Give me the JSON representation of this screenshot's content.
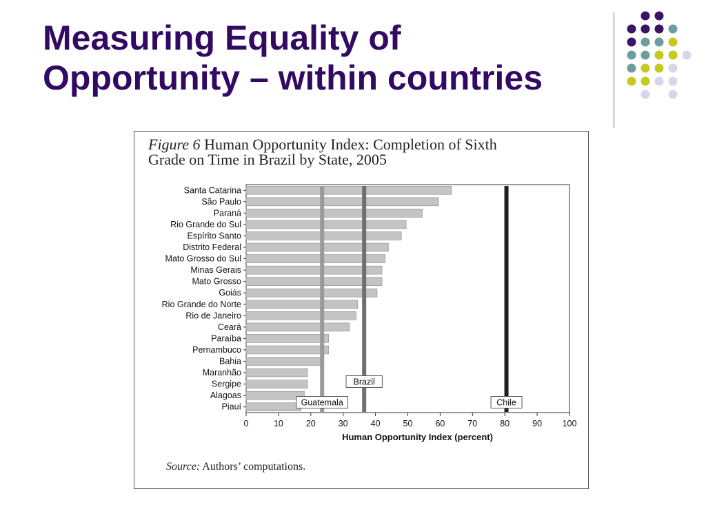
{
  "slide": {
    "title_line1": "Measuring Equality of",
    "title_line2": "Opportunity – within countries",
    "title_color": "#330a63"
  },
  "decoration": {
    "dot_colors": {
      "purple": "#3a1466",
      "teal": "#6f9c9c",
      "yellow": "#c8c81e",
      "lavender": "#d6d6ea"
    },
    "dot_rows": [
      [
        "",
        "purple",
        "purple",
        "",
        ""
      ],
      [
        "purple",
        "purple",
        "purple",
        "teal",
        ""
      ],
      [
        "purple",
        "teal",
        "teal",
        "yellow",
        ""
      ],
      [
        "teal",
        "teal",
        "yellow",
        "yellow",
        "lavender"
      ],
      [
        "teal",
        "yellow",
        "yellow",
        "lavender",
        ""
      ],
      [
        "yellow",
        "yellow",
        "lavender",
        "lavender",
        ""
      ],
      [
        "",
        "lavender",
        "",
        "lavender",
        ""
      ]
    ]
  },
  "figure": {
    "label": "Figure 6",
    "title_rest_line1": " Human Opportunity Index: Completion of Sixth",
    "title_line2": "Grade on Time in Brazil by State, 2005",
    "source_label": "Source:",
    "source_text": " Authors’ computations."
  },
  "chart_data": {
    "type": "bar",
    "orientation": "horizontal",
    "categories": [
      "Santa Catarina",
      "São Paulo",
      "Paraná",
      "Rio Grande do Sul",
      "Espírito Santo",
      "Distrito Federal",
      "Mato Grosso do Sul",
      "Minas Gerais",
      "Mato Grosso",
      "Goiás",
      "Rio Grande do Norte",
      "Rio de Janeiro",
      "Ceará",
      "Paraíba",
      "Pernambuco",
      "Bahia",
      "Maranhão",
      "Sergipe",
      "Alagoas",
      "Piauí"
    ],
    "values": [
      63.5,
      59.5,
      54.5,
      49.5,
      48,
      44,
      43,
      42,
      42,
      40.5,
      34.5,
      34,
      32,
      25.5,
      25.5,
      23,
      19,
      19,
      18,
      17
    ],
    "reference_lines": [
      {
        "name": "Guatemala",
        "value": 23.5,
        "color": "#9a9a9a"
      },
      {
        "name": "Brazil",
        "value": 36.5,
        "color": "#6f6f6f"
      },
      {
        "name": "Chile",
        "value": 80.5,
        "color": "#1f1f1f"
      }
    ],
    "xlabel": "Human Opportunity Index (percent)",
    "ylabel": "",
    "xlim": [
      0,
      100
    ],
    "xticks": [
      0,
      10,
      20,
      30,
      40,
      50,
      60,
      70,
      80,
      90,
      100
    ],
    "bar_color": "#c4c4c4",
    "grid": false
  }
}
